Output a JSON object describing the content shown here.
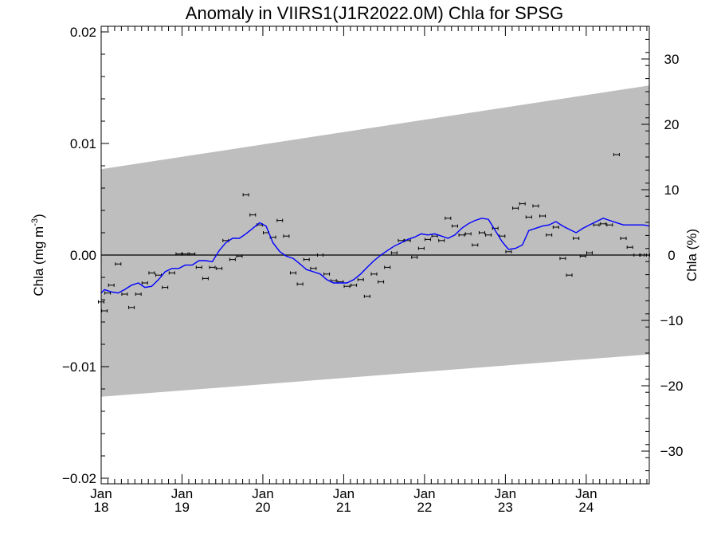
{
  "chart_data": {
    "type": "line",
    "title": "Anomaly in VIIRS1(J1R2022.0M) Chla for SPSG",
    "ylabel_left": {
      "text": "Chla (mg m",
      "superscript": "-3",
      "suffix": ")"
    },
    "ylabel_right": "Chla (%)",
    "ylim_left": [
      -0.0205,
      0.0205
    ],
    "ylim_right": [
      -35,
      35
    ],
    "xlim": [
      2018.0,
      2024.78
    ],
    "left_ticks": [
      {
        "value": 0.02,
        "label": "0.02"
      },
      {
        "value": 0.01,
        "label": "0.01"
      },
      {
        "value": 0.0,
        "label": "0.00"
      },
      {
        "value": -0.01,
        "label": "−0.01"
      },
      {
        "value": -0.02,
        "label": "−0.02"
      }
    ],
    "right_ticks": [
      {
        "value": 30,
        "label": "30"
      },
      {
        "value": 20,
        "label": "20"
      },
      {
        "value": 10,
        "label": "10"
      },
      {
        "value": 0,
        "label": "0"
      },
      {
        "value": -10,
        "label": "−10"
      },
      {
        "value": -20,
        "label": "−20"
      },
      {
        "value": -30,
        "label": "−30"
      }
    ],
    "x_ticks": [
      {
        "value": 2018,
        "month": "Jan",
        "year": "18"
      },
      {
        "value": 2019,
        "month": "Jan",
        "year": "19"
      },
      {
        "value": 2020,
        "month": "Jan",
        "year": "20"
      },
      {
        "value": 2021,
        "month": "Jan",
        "year": "21"
      },
      {
        "value": 2022,
        "month": "Jan",
        "year": "22"
      },
      {
        "value": 2023,
        "month": "Jan",
        "year": "23"
      },
      {
        "value": 2024,
        "month": "Jan",
        "year": "24"
      }
    ],
    "band": {
      "x": [
        2018.0,
        2024.78
      ],
      "upper": [
        0.0077,
        0.0152
      ],
      "lower": [
        -0.0127,
        -0.0089
      ],
      "color": "#bebebe"
    },
    "zero_line": 0,
    "series": [
      {
        "kind": "points",
        "x": [
          2018.0,
          2018.04,
          2018.08,
          2018.125,
          2018.21,
          2018.29,
          2018.375,
          2018.46,
          2018.54,
          2018.625,
          2018.71,
          2018.79,
          2018.875,
          2018.96,
          2019.04,
          2019.125,
          2019.21,
          2019.29,
          2019.375,
          2019.46,
          2019.54,
          2019.625,
          2019.71,
          2019.79,
          2019.875,
          2019.96,
          2020.04,
          2020.125,
          2020.21,
          2020.29,
          2020.375,
          2020.46,
          2020.54,
          2020.625,
          2020.71,
          2020.79,
          2020.875,
          2020.96,
          2021.04,
          2021.125,
          2021.21,
          2021.29,
          2021.375,
          2021.46,
          2021.54,
          2021.625,
          2021.71,
          2021.79,
          2021.875,
          2021.96,
          2022.04,
          2022.125,
          2022.21,
          2022.29,
          2022.375,
          2022.46,
          2022.54,
          2022.625,
          2022.71,
          2022.79,
          2022.875,
          2022.96,
          2023.04,
          2023.125,
          2023.21,
          2023.29,
          2023.375,
          2023.46,
          2023.54,
          2023.625,
          2023.71,
          2023.79,
          2023.875,
          2023.96,
          2024.04,
          2024.125,
          2024.21,
          2024.29,
          2024.375,
          2024.46,
          2024.54,
          2024.625,
          2024.71,
          2024.75
        ],
        "y": [
          -0.0042,
          -0.005,
          -0.0034,
          -0.0027,
          -0.0008,
          -0.0035,
          -0.0047,
          -0.0035,
          -0.0025,
          -0.0016,
          -0.0018,
          -0.0029,
          -0.0016,
          0.0001,
          0.0001,
          0.0001,
          -0.0011,
          -0.0021,
          -0.0011,
          -0.0012,
          0.0013,
          -0.0004,
          -0.0001,
          0.0054,
          0.0036,
          0.0027,
          0.002,
          0.0016,
          0.0031,
          0.0017,
          -0.0016,
          -0.0026,
          -0.0004,
          -0.0012,
          0.0,
          -0.0017,
          -0.0023,
          -0.0024,
          -0.0028,
          -0.0027,
          -0.0022,
          -0.0037,
          -0.0017,
          -0.0024,
          -0.0011,
          0.0002,
          0.0013,
          0.0013,
          -0.0002,
          0.0006,
          0.0014,
          0.0017,
          0.0013,
          0.0033,
          0.0026,
          0.0018,
          0.0019,
          0.0009,
          0.002,
          0.0018,
          0.0024,
          0.0017,
          0.0003,
          0.0042,
          0.0046,
          0.0034,
          0.0044,
          0.0035,
          0.0018,
          0.0025,
          -0.0003,
          -0.0018,
          0.0015,
          -0.0001,
          0.0002,
          0.0027,
          0.0028,
          0.0027,
          0.009,
          0.0015,
          0.0007,
          0.0,
          0.0,
          0.0
        ],
        "color": "#000000"
      },
      {
        "kind": "line",
        "x": [
          2018.0,
          2018.04,
          2018.125,
          2018.21,
          2018.29,
          2018.375,
          2018.46,
          2018.54,
          2018.625,
          2018.71,
          2018.79,
          2018.875,
          2018.96,
          2019.04,
          2019.125,
          2019.21,
          2019.29,
          2019.375,
          2019.46,
          2019.54,
          2019.625,
          2019.71,
          2019.79,
          2019.875,
          2019.96,
          2020.04,
          2020.125,
          2020.21,
          2020.29,
          2020.375,
          2020.46,
          2020.54,
          2020.625,
          2020.71,
          2020.79,
          2020.875,
          2020.96,
          2021.04,
          2021.125,
          2021.21,
          2021.29,
          2021.375,
          2021.46,
          2021.54,
          2021.625,
          2021.71,
          2021.79,
          2021.875,
          2021.96,
          2022.04,
          2022.125,
          2022.21,
          2022.29,
          2022.375,
          2022.46,
          2022.54,
          2022.625,
          2022.71,
          2022.79,
          2022.875,
          2022.96,
          2023.04,
          2023.125,
          2023.21,
          2023.29,
          2023.375,
          2023.46,
          2023.54,
          2023.625,
          2023.71,
          2023.79,
          2023.875,
          2023.96,
          2024.04,
          2024.125,
          2024.21,
          2024.29,
          2024.375,
          2024.46,
          2024.54,
          2024.625,
          2024.71,
          2024.78
        ],
        "y": [
          -0.0034,
          -0.0031,
          -0.0033,
          -0.0034,
          -0.0031,
          -0.0027,
          -0.0025,
          -0.0029,
          -0.0028,
          -0.0022,
          -0.0015,
          -0.0012,
          -0.0012,
          -0.0009,
          -0.0009,
          -0.0005,
          -0.0005,
          -0.0006,
          0.0004,
          0.0011,
          0.0015,
          0.0015,
          0.0019,
          0.0024,
          0.0029,
          0.0026,
          0.0011,
          0.0003,
          -0.0001,
          -0.0003,
          -0.0008,
          -0.0013,
          -0.0015,
          -0.0017,
          -0.0022,
          -0.0025,
          -0.0025,
          -0.0025,
          -0.0022,
          -0.0017,
          -0.0011,
          -0.0005,
          0.0,
          0.0004,
          0.0008,
          0.0011,
          0.0014,
          0.0016,
          0.0019,
          0.0018,
          0.0019,
          0.0017,
          0.0015,
          0.0018,
          0.0024,
          0.0028,
          0.0031,
          0.0033,
          0.0032,
          0.0022,
          0.0012,
          0.0005,
          0.0006,
          0.0009,
          0.0022,
          0.0024,
          0.0026,
          0.0027,
          0.003,
          0.0026,
          0.0023,
          0.002,
          0.0024,
          0.0027,
          0.003,
          0.0033,
          0.0031,
          0.0029,
          0.0027,
          0.0027,
          0.0027,
          0.0027,
          0.0026
        ],
        "color": "#0000ff"
      }
    ]
  }
}
